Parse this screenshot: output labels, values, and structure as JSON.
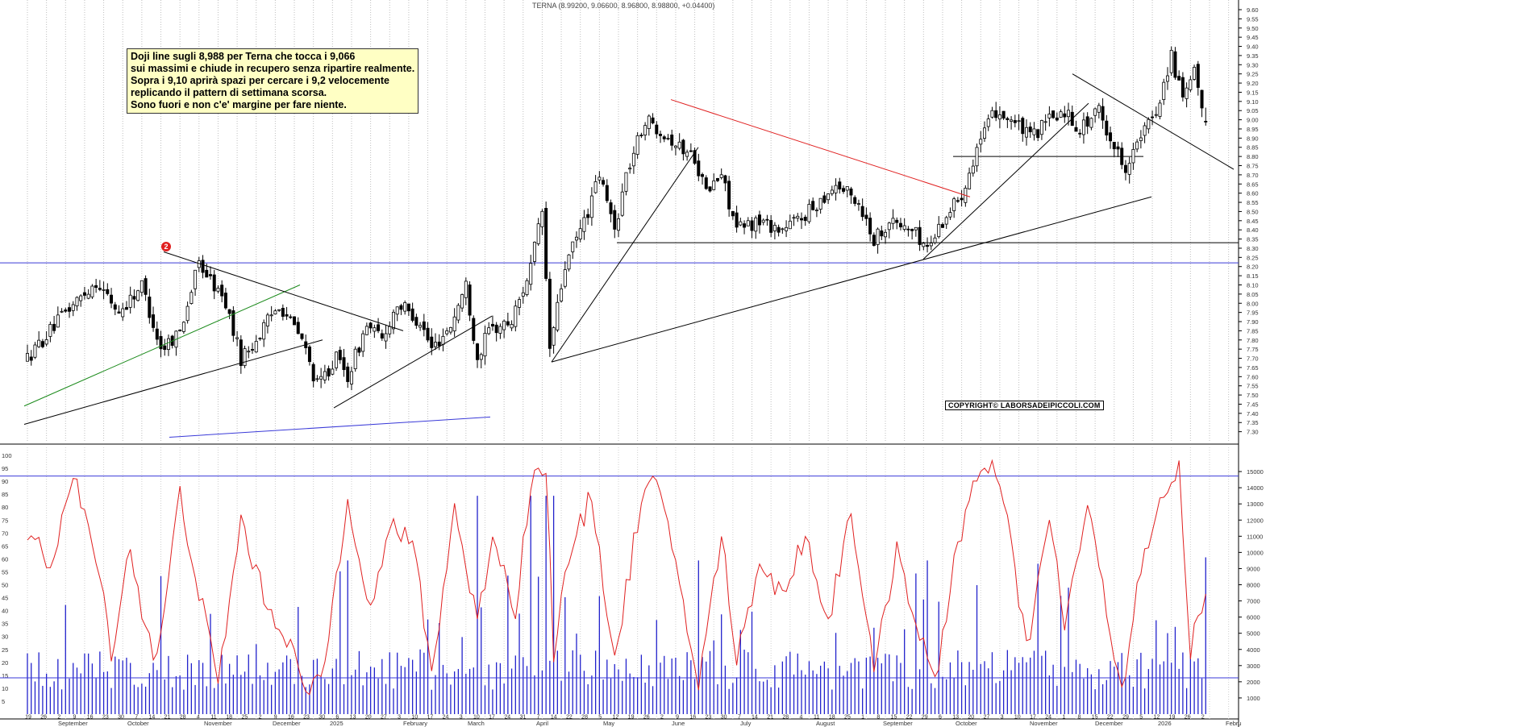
{
  "chart_title": "TERNA (8.99200, 9.06600, 8.96800, 8.98800, +0.04400)",
  "note_lines": [
    "Doji line sugli 8,988 per Terna che tocca i 9,066",
    "sui massimi e chiude in recupero senza ripartire realmente.",
    "Sopra i 9,10   aprirà spazi per cercare i 9,2 velocemente",
    "replicando il pattern di settimana scorsa.",
    "Sono fuori e non c'e' margine per fare niente."
  ],
  "copyright": "COPYRIGHT© LABORSADEIPICCOLI.COM",
  "marker_label": "2",
  "colors": {
    "up": "#ffffff",
    "down": "#000000",
    "horizontal": "#3a3ad8",
    "red_trend": "#e02020",
    "green_trend": "#1a8a1a",
    "oscillator": "#e02020",
    "volume": "#2222cc"
  },
  "chart_data": [
    {
      "type": "candlestick",
      "title": "TERNA (8.99200, 9.06600, 8.96800, 8.98800, +0.04400)",
      "y_axis_position": "right",
      "ylim": [
        7.25,
        9.6
      ],
      "y_ticks": [
        "9.60",
        "9.55",
        "9.50",
        "9.45",
        "9.40",
        "9.35",
        "9.30",
        "9.25",
        "9.20",
        "9.15",
        "9.10",
        "9.05",
        "9.00",
        "8.95",
        "8.90",
        "8.85",
        "8.80",
        "8.75",
        "8.70",
        "8.65",
        "8.60",
        "8.55",
        "8.50",
        "8.45",
        "8.40",
        "8.35",
        "8.30",
        "8.25",
        "8.20",
        "8.15",
        "8.10",
        "8.05",
        "8.00",
        "7.95",
        "7.90",
        "7.85",
        "7.80",
        "7.75",
        "7.70",
        "7.65",
        "7.60",
        "7.55",
        "7.50",
        "7.45",
        "7.40",
        "7.35",
        "7.30"
      ],
      "last_candle": {
        "open": 8.992,
        "high": 9.066,
        "low": 8.968,
        "close": 8.988
      },
      "horizontal_lines": [
        8.22,
        8.33
      ],
      "price_anchors": [
        {
          "day": 0,
          "price": 7.7
        },
        {
          "day": 10,
          "price": 7.95
        },
        {
          "day": 18,
          "price": 8.12
        },
        {
          "day": 24,
          "price": 7.95
        },
        {
          "day": 30,
          "price": 8.1
        },
        {
          "day": 35,
          "price": 7.75
        },
        {
          "day": 40,
          "price": 7.85
        },
        {
          "day": 45,
          "price": 8.22
        },
        {
          "day": 52,
          "price": 8.0
        },
        {
          "day": 56,
          "price": 7.7
        },
        {
          "day": 60,
          "price": 7.8
        },
        {
          "day": 66,
          "price": 8.0
        },
        {
          "day": 72,
          "price": 7.8
        },
        {
          "day": 76,
          "price": 7.55
        },
        {
          "day": 81,
          "price": 7.7
        },
        {
          "day": 84,
          "price": 7.6
        },
        {
          "day": 89,
          "price": 7.88
        },
        {
          "day": 93,
          "price": 7.8
        },
        {
          "day": 97,
          "price": 8.0
        },
        {
          "day": 103,
          "price": 7.9
        },
        {
          "day": 106,
          "price": 7.75
        },
        {
          "day": 111,
          "price": 7.88
        },
        {
          "day": 115,
          "price": 8.1
        },
        {
          "day": 118,
          "price": 7.7
        },
        {
          "day": 121,
          "price": 7.85
        },
        {
          "day": 127,
          "price": 7.9
        },
        {
          "day": 132,
          "price": 8.2
        },
        {
          "day": 135,
          "price": 8.5
        },
        {
          "day": 137,
          "price": 7.75
        },
        {
          "day": 141,
          "price": 8.2
        },
        {
          "day": 147,
          "price": 8.5
        },
        {
          "day": 150,
          "price": 8.7
        },
        {
          "day": 154,
          "price": 8.4
        },
        {
          "day": 157,
          "price": 8.7
        },
        {
          "day": 162,
          "price": 9.0
        },
        {
          "day": 166,
          "price": 8.95
        },
        {
          "day": 171,
          "price": 8.85
        },
        {
          "day": 175,
          "price": 8.8
        },
        {
          "day": 178,
          "price": 8.6
        },
        {
          "day": 182,
          "price": 8.7
        },
        {
          "day": 186,
          "price": 8.4
        },
        {
          "day": 192,
          "price": 8.45
        },
        {
          "day": 198,
          "price": 8.4
        },
        {
          "day": 205,
          "price": 8.5
        },
        {
          "day": 212,
          "price": 8.65
        },
        {
          "day": 218,
          "price": 8.55
        },
        {
          "day": 222,
          "price": 8.35
        },
        {
          "day": 226,
          "price": 8.45
        },
        {
          "day": 232,
          "price": 8.4
        },
        {
          "day": 236,
          "price": 8.3
        },
        {
          "day": 240,
          "price": 8.45
        },
        {
          "day": 245,
          "price": 8.6
        },
        {
          "day": 249,
          "price": 8.85
        },
        {
          "day": 254,
          "price": 9.05
        },
        {
          "day": 258,
          "price": 9.0
        },
        {
          "day": 263,
          "price": 8.9
        },
        {
          "day": 268,
          "price": 9.0
        },
        {
          "day": 272,
          "price": 9.05
        },
        {
          "day": 276,
          "price": 8.95
        },
        {
          "day": 281,
          "price": 9.05
        },
        {
          "day": 285,
          "price": 8.85
        },
        {
          "day": 288,
          "price": 8.75
        },
        {
          "day": 292,
          "price": 8.9
        },
        {
          "day": 296,
          "price": 9.05
        },
        {
          "day": 300,
          "price": 9.35
        },
        {
          "day": 303,
          "price": 9.1
        },
        {
          "day": 306,
          "price": 9.25
        },
        {
          "day": 309,
          "price": 8.99
        }
      ],
      "month_labels": [
        "September",
        "October",
        "November",
        "December",
        "2025",
        "February",
        "March",
        "April",
        "May",
        "June",
        "July",
        "August",
        "September",
        "October",
        "November",
        "December",
        "2026",
        "Febru"
      ],
      "day_labels": [
        "19",
        "26",
        "2",
        "9",
        "16",
        "23",
        "30",
        "7",
        "14",
        "21",
        "28",
        "4",
        "11",
        "18",
        "25",
        "2",
        "9",
        "16",
        "23",
        "30",
        "6",
        "13",
        "20",
        "27",
        "3",
        "10",
        "17",
        "24",
        "3",
        "10",
        "17",
        "24",
        "31",
        "7",
        "14",
        "22",
        "28",
        "5",
        "12",
        "19",
        "26",
        "2",
        "9",
        "16",
        "23",
        "30",
        "7",
        "14",
        "21",
        "28",
        "4",
        "11",
        "18",
        "25",
        "1",
        "8",
        "15",
        "22",
        "29",
        "6",
        "13",
        "20",
        "27",
        "3",
        "10",
        "17",
        "24",
        "1",
        "8",
        "15",
        "22",
        "29",
        "5",
        "12",
        "19",
        "26",
        "2"
      ]
    },
    {
      "type": "line",
      "name": "oscillator",
      "ylim": [
        0,
        100
      ],
      "y_ticks": [
        "100",
        "95",
        "90",
        "85",
        "80",
        "75",
        "70",
        "65",
        "60",
        "55",
        "50",
        "45",
        "40",
        "35",
        "30",
        "25",
        "20",
        "15",
        "10",
        "5"
      ],
      "horizontal_lines": [
        92,
        14
      ],
      "anchors": [
        {
          "day": 0,
          "v": 70
        },
        {
          "day": 6,
          "v": 58
        },
        {
          "day": 12,
          "v": 92
        },
        {
          "day": 18,
          "v": 60
        },
        {
          "day": 22,
          "v": 25
        },
        {
          "day": 27,
          "v": 65
        },
        {
          "day": 30,
          "v": 40
        },
        {
          "day": 34,
          "v": 20
        },
        {
          "day": 40,
          "v": 85
        },
        {
          "day": 46,
          "v": 40
        },
        {
          "day": 50,
          "v": 12
        },
        {
          "day": 56,
          "v": 75
        },
        {
          "day": 62,
          "v": 45
        },
        {
          "day": 68,
          "v": 30
        },
        {
          "day": 74,
          "v": 5
        },
        {
          "day": 78,
          "v": 20
        },
        {
          "day": 84,
          "v": 85
        },
        {
          "day": 90,
          "v": 40
        },
        {
          "day": 96,
          "v": 75
        },
        {
          "day": 102,
          "v": 60
        },
        {
          "day": 106,
          "v": 15
        },
        {
          "day": 112,
          "v": 80
        },
        {
          "day": 118,
          "v": 35
        },
        {
          "day": 122,
          "v": 70
        },
        {
          "day": 128,
          "v": 40
        },
        {
          "day": 132,
          "v": 90
        },
        {
          "day": 136,
          "v": 95
        },
        {
          "day": 138,
          "v": 25
        },
        {
          "day": 142,
          "v": 60
        },
        {
          "day": 148,
          "v": 85
        },
        {
          "day": 154,
          "v": 20
        },
        {
          "day": 160,
          "v": 75
        },
        {
          "day": 164,
          "v": 92
        },
        {
          "day": 170,
          "v": 60
        },
        {
          "day": 176,
          "v": 10
        },
        {
          "day": 182,
          "v": 70
        },
        {
          "day": 186,
          "v": 20
        },
        {
          "day": 192,
          "v": 60
        },
        {
          "day": 198,
          "v": 45
        },
        {
          "day": 204,
          "v": 70
        },
        {
          "day": 210,
          "v": 35
        },
        {
          "day": 216,
          "v": 80
        },
        {
          "day": 222,
          "v": 15
        },
        {
          "day": 228,
          "v": 65
        },
        {
          "day": 234,
          "v": 30
        },
        {
          "day": 238,
          "v": 10
        },
        {
          "day": 243,
          "v": 60
        },
        {
          "day": 248,
          "v": 88
        },
        {
          "day": 254,
          "v": 95
        },
        {
          "day": 258,
          "v": 65
        },
        {
          "day": 262,
          "v": 25
        },
        {
          "day": 268,
          "v": 75
        },
        {
          "day": 272,
          "v": 35
        },
        {
          "day": 278,
          "v": 80
        },
        {
          "day": 283,
          "v": 40
        },
        {
          "day": 287,
          "v": 10
        },
        {
          "day": 292,
          "v": 55
        },
        {
          "day": 298,
          "v": 85
        },
        {
          "day": 302,
          "v": 95
        },
        {
          "day": 305,
          "v": 25
        },
        {
          "day": 309,
          "v": 50
        }
      ]
    },
    {
      "type": "bar",
      "name": "volume",
      "ylim": [
        0,
        16000
      ],
      "y_ticks": [
        "15000",
        "14000",
        "13000",
        "12000",
        "11000",
        "10000",
        "9000",
        "8000",
        "7000",
        "6000",
        "5000",
        "4000",
        "3000",
        "2000",
        "1000"
      ]
    }
  ]
}
